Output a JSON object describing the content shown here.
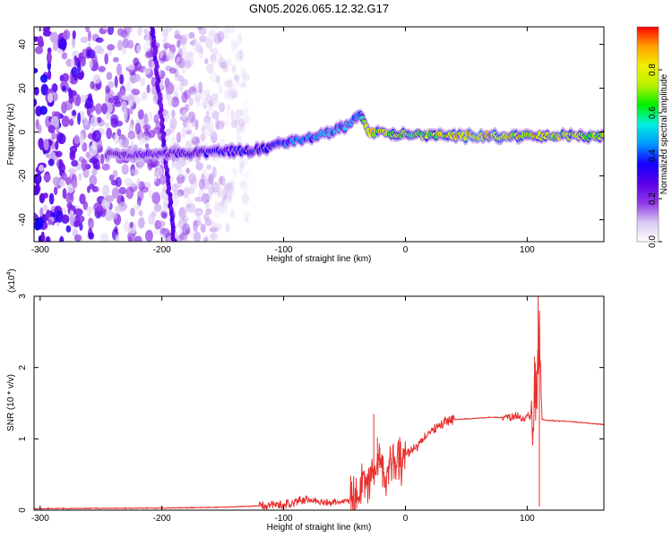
{
  "title": "GN05.2026.065.12.32.G17",
  "chart_data": [
    {
      "type": "heatmap",
      "xlabel": "Height of straight line (km)",
      "ylabel": "Frequency (Hz)",
      "xlim": [
        -305,
        163
      ],
      "ylim": [
        -50,
        48
      ],
      "x_ticks": [
        -300,
        -200,
        -100,
        0,
        100
      ],
      "y_ticks": [
        -40,
        -20,
        0,
        20,
        40
      ],
      "colorbar": {
        "label": "Normalized spectral amplitude",
        "range": [
          0,
          1
        ],
        "ticks": [
          0.0,
          0.2,
          0.4,
          0.6,
          0.8
        ],
        "colormap": [
          "#ffffff",
          "#d9c8f2",
          "#8f35e6",
          "#5a00e8",
          "#1400ff",
          "#0098ff",
          "#00f0e0",
          "#00f000",
          "#b8f000",
          "#f0f000",
          "#ffa000",
          "#ff0000"
        ]
      },
      "ridge": {
        "x": [
          -245,
          -200,
          -150,
          -120,
          -90,
          -60,
          -45,
          -38,
          -30,
          0,
          60,
          100,
          163
        ],
        "y": [
          -10,
          -10,
          -9,
          -8,
          -4,
          0,
          4,
          8,
          0,
          -1,
          -2,
          -2,
          -2
        ],
        "amplitude": [
          0.25,
          0.3,
          0.35,
          0.4,
          0.45,
          0.5,
          0.5,
          0.45,
          0.9,
          0.7,
          0.98,
          0.85,
          0.75
        ]
      },
      "noise_region": {
        "x_range": [
          -305,
          -130
        ],
        "amplitude": 0.15
      },
      "streak": {
        "x": [
          -208,
          -190
        ],
        "y": [
          48,
          -50
        ]
      }
    },
    {
      "type": "line",
      "xlabel": "Height of straight line (km)",
      "ylabel": "SNR (10 * v/v)",
      "y_multiplier": "(x10",
      "y_multiplier_exp": "4",
      "y_multiplier_close": ")",
      "xlim": [
        -305,
        163
      ],
      "ylim": [
        0,
        3
      ],
      "x_ticks": [
        -300,
        -200,
        -100,
        0,
        100
      ],
      "y_ticks": [
        0,
        1,
        2,
        3
      ],
      "series": [
        {
          "color": "#e8312f",
          "x": [
            -305,
            -200,
            -150,
            -120,
            -100,
            -90,
            -80,
            -60,
            -40,
            -30,
            -25,
            -20,
            -15,
            -10,
            0,
            10,
            20,
            30,
            40,
            50,
            60,
            70,
            80,
            90,
            100,
            105,
            108,
            110,
            112,
            115,
            130,
            150,
            163
          ],
          "y": [
            0.02,
            0.03,
            0.04,
            0.06,
            0.08,
            0.12,
            0.15,
            0.1,
            0.15,
            0.45,
            0.55,
            0.6,
            0.5,
            0.7,
            0.78,
            0.9,
            1.1,
            1.22,
            1.27,
            1.28,
            1.29,
            1.3,
            1.3,
            1.31,
            1.3,
            1.35,
            1.6,
            2.5,
            1.28,
            1.26,
            1.25,
            1.22,
            1.2
          ]
        }
      ]
    }
  ]
}
